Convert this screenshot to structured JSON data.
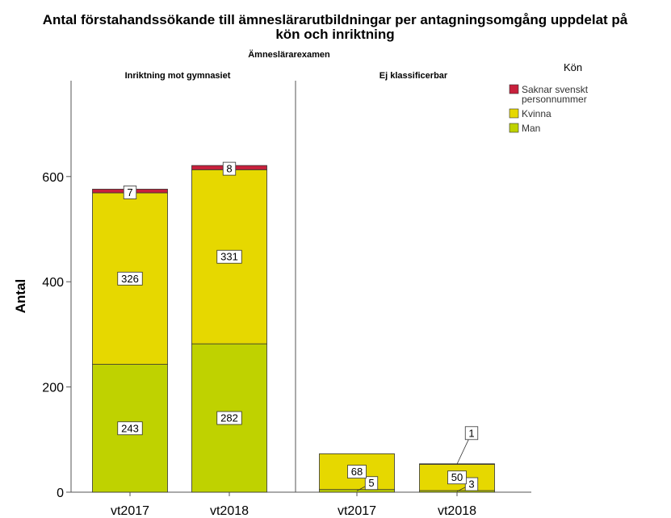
{
  "chart_data": {
    "type": "bar",
    "stacked": true,
    "title_line1": "Antal förstahandssökande till ämneslärarutbildningar per antagningsomgång uppdelat på",
    "title_line2": "kön och inriktning",
    "facet_title": "Ämneslärarexamen",
    "ylabel": "Antal",
    "ylim": [
      0,
      750
    ],
    "yticks": [
      0,
      200,
      400,
      600
    ],
    "legend_title": "Kön",
    "legend_position": "top-right",
    "legend": [
      {
        "lines": [
          "Saknar svenskt",
          "personnummer"
        ],
        "color": "#c8203c"
      },
      {
        "lines": [
          "Kvinna"
        ],
        "color": "#e6d800"
      },
      {
        "lines": [
          "Man"
        ],
        "color": "#bfd200"
      }
    ],
    "series": [
      {
        "name": "Man",
        "color": "#bfd200"
      },
      {
        "name": "Kvinna",
        "color": "#e6d800"
      },
      {
        "name": "Saknar svenskt personnummer",
        "color": "#c8203c"
      }
    ],
    "panels": [
      {
        "label": "Inriktning mot gymnasiet",
        "categories": [
          "vt2017",
          "vt2018"
        ],
        "values": {
          "Man": [
            243,
            282
          ],
          "Kvinna": [
            326,
            331
          ],
          "Saknar svenskt personnummer": [
            7,
            8
          ]
        }
      },
      {
        "label": "Ej klassificerbar",
        "categories": [
          "vt2017",
          "vt2018"
        ],
        "values": {
          "Man": [
            5,
            3
          ],
          "Kvinna": [
            68,
            50
          ],
          "Saknar svenskt personnummer": [
            0,
            1
          ]
        }
      }
    ]
  }
}
